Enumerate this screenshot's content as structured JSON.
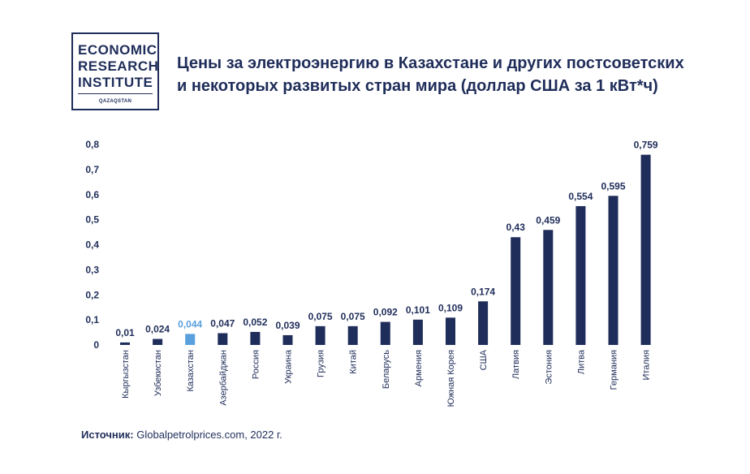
{
  "logo": {
    "line1": "ECONOMIC",
    "line2": "RESEARCH",
    "line3": "INSTITUTE",
    "sub": "QAZAQSTAN"
  },
  "title": {
    "line1": "Цены за электроэнергию в Казахстане и других постсоветских",
    "line2": "и некоторых развитых стран мира (доллар США за 1 кВт*ч)"
  },
  "source": {
    "label": "Источник:",
    "text": "Globalpetrolprices.com, 2022 г."
  },
  "colors": {
    "bar": "#1f2d5a",
    "highlight": "#5aa0dd"
  },
  "chart_data": {
    "type": "bar",
    "title": "Цены за электроэнергию в Казахстане и других постсоветских и некоторых развитых стран мира (доллар США за 1 кВт*ч)",
    "categories": [
      "Кыргызстан",
      "Узбекистан",
      "Казахстан",
      "Азербайджан",
      "Россия",
      "Украина",
      "Грузия",
      "Китай",
      "Беларусь",
      "Армения",
      "Южная Корея",
      "США",
      "Латвия",
      "Эстония",
      "Литва",
      "Германия",
      "Италия"
    ],
    "values": [
      0.01,
      0.024,
      0.044,
      0.047,
      0.052,
      0.039,
      0.075,
      0.075,
      0.092,
      0.101,
      0.109,
      0.174,
      0.43,
      0.459,
      0.554,
      0.595,
      0.759
    ],
    "value_labels": [
      "0,01",
      "0,024",
      "0,044",
      "0,047",
      "0,052",
      "0,039",
      "0,075",
      "0,075",
      "0,092",
      "0,101",
      "0,109",
      "0,174",
      "0,43",
      "0,459",
      "0,554",
      "0,595",
      "0,759"
    ],
    "highlight_index": 2,
    "yticks": [
      0,
      0.1,
      0.2,
      0.3,
      0.4,
      0.5,
      0.6,
      0.7,
      0.8
    ],
    "ytick_labels": [
      "0",
      "0,1",
      "0,2",
      "0,3",
      "0,4",
      "0,5",
      "0,6",
      "0,7",
      "0,8"
    ],
    "ylim": [
      0,
      0.8
    ],
    "xlabel": "",
    "ylabel": "",
    "grid": false
  }
}
